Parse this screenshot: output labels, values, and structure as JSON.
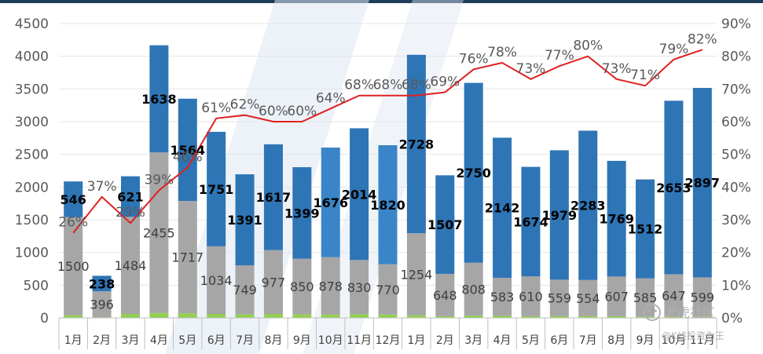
{
  "chart_data": {
    "type": "bar",
    "stacked": true,
    "categories": [
      "1月",
      "2月",
      "3月",
      "4月",
      "5月",
      "6月",
      "7月",
      "8月",
      "9月",
      "10月",
      "11月",
      "12月",
      "1月",
      "2月",
      "3月",
      "4月",
      "5月",
      "6月",
      "7月",
      "8月",
      "9月",
      "10月",
      "11月"
    ],
    "series": [
      {
        "values": [
          40,
          10,
          60,
          75,
          70,
          60,
          55,
          60,
          55,
          50,
          55,
          50,
          40,
          25,
          35,
          30,
          25,
          25,
          25,
          25,
          20,
          20,
          20
        ],
        "color": "#92d050"
      },
      {
        "values": [
          1500,
          396,
          1484,
          2455,
          1717,
          1034,
          749,
          977,
          850,
          878,
          830,
          770,
          1254,
          648,
          808,
          583,
          610,
          559,
          554,
          607,
          585,
          647,
          599
        ],
        "color": "#a6a6a6"
      },
      {
        "values": [
          546,
          238,
          621,
          1638,
          1564,
          1751,
          1391,
          1617,
          1399,
          1676,
          2014,
          1820,
          2728,
          1507,
          2750,
          2142,
          1674,
          1979,
          2283,
          1769,
          1512,
          2653,
          2897
        ],
        "color": "#2e75b6"
      }
    ],
    "share_line": {
      "values": [
        26,
        37,
        29,
        39,
        46,
        61,
        62,
        60,
        60,
        64,
        68,
        68,
        68,
        69,
        76,
        78,
        73,
        77,
        80,
        73,
        71,
        79,
        82
      ],
      "labels": [
        "26%",
        "37%",
        "29%",
        "39%",
        "46%",
        "61%",
        "62%",
        "60%",
        "60%",
        "64%",
        "68%",
        "68%",
        "68%",
        "69%",
        "76%",
        "78%",
        "73%",
        "77%",
        "80%",
        "73%",
        "71%",
        "79%",
        "82%"
      ],
      "color": "#e02020"
    },
    "left_axis": {
      "min": 0,
      "max": 4500,
      "step": 500,
      "ticks": [
        "0",
        "500",
        "1000",
        "1500",
        "2000",
        "2500",
        "3000",
        "3500",
        "4000",
        "4500"
      ]
    },
    "right_axis": {
      "min": 0,
      "max": 90,
      "step": 10,
      "ticks": [
        "0%",
        "10%",
        "20%",
        "30%",
        "40%",
        "50%",
        "60%",
        "70%",
        "80%",
        "90%"
      ]
    },
    "watermark": {
      "brand": "老虎社区",
      "author": "@K线投资为王"
    }
  }
}
